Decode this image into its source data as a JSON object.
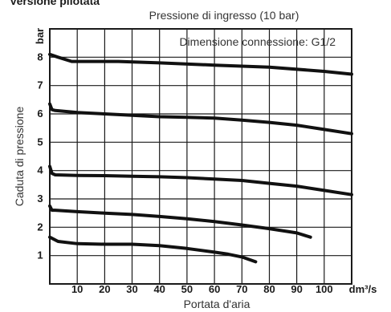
{
  "heading": "Versione pilotata",
  "chart_data": {
    "type": "line",
    "title": "Pressione di ingresso (10 bar)",
    "annotation": "Dimensione connessione: G1/2",
    "xlabel": "Portata d'aria",
    "x_unit": "dm³/s",
    "ylabel": "Caduta di pressione",
    "y_unit": "bar",
    "xlim": [
      0,
      110
    ],
    "ylim": [
      0,
      9
    ],
    "x_ticks": [
      10,
      20,
      30,
      40,
      50,
      60,
      70,
      80,
      90,
      100
    ],
    "y_ticks": [
      1,
      2,
      3,
      4,
      5,
      6,
      7,
      8
    ],
    "grid": true,
    "series": [
      {
        "x": [
          0,
          3,
          8,
          25,
          40,
          60,
          80,
          100,
          110
        ],
        "y": [
          8.1,
          8.0,
          7.85,
          7.85,
          7.8,
          7.72,
          7.65,
          7.5,
          7.4
        ]
      },
      {
        "x": [
          0,
          0.8,
          2,
          10,
          20,
          30,
          40,
          50,
          60,
          70,
          80,
          90,
          100,
          110
        ],
        "y": [
          6.35,
          6.15,
          6.12,
          6.05,
          6.0,
          5.95,
          5.9,
          5.88,
          5.85,
          5.78,
          5.7,
          5.6,
          5.45,
          5.3
        ]
      },
      {
        "x": [
          0,
          0.8,
          2,
          10,
          20,
          30,
          40,
          50,
          60,
          70,
          80,
          90,
          100,
          110
        ],
        "y": [
          4.15,
          3.9,
          3.85,
          3.83,
          3.82,
          3.8,
          3.78,
          3.75,
          3.7,
          3.65,
          3.55,
          3.45,
          3.3,
          3.15
        ]
      },
      {
        "x": [
          0,
          0.8,
          2,
          10,
          20,
          30,
          40,
          50,
          60,
          70,
          80,
          90,
          95
        ],
        "y": [
          2.75,
          2.6,
          2.6,
          2.55,
          2.5,
          2.45,
          2.38,
          2.3,
          2.2,
          2.08,
          1.95,
          1.8,
          1.65
        ]
      },
      {
        "x": [
          0,
          3,
          10,
          20,
          30,
          40,
          50,
          60,
          65,
          70,
          75
        ],
        "y": [
          1.65,
          1.5,
          1.42,
          1.4,
          1.4,
          1.35,
          1.25,
          1.12,
          1.05,
          0.95,
          0.78
        ]
      }
    ]
  }
}
